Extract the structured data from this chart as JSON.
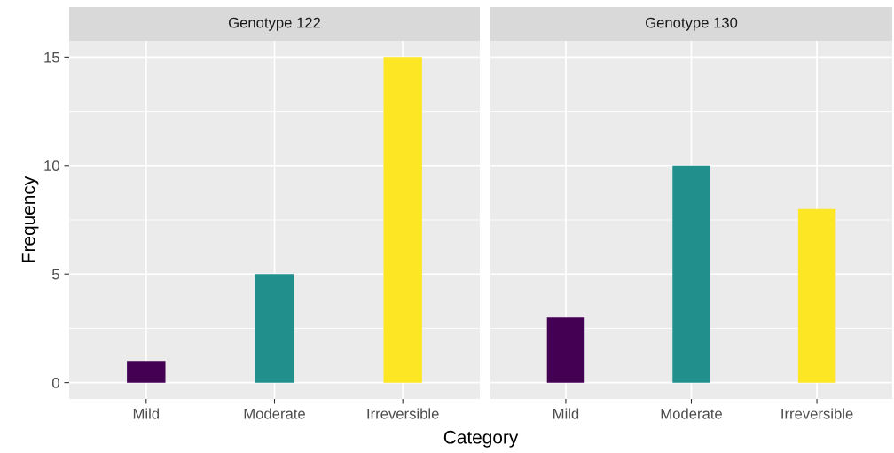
{
  "chart_data": [
    {
      "type": "bar",
      "title": "Genotype 122",
      "ylabel": "Frequency",
      "xlabel": "Category",
      "categories": [
        "Mild",
        "Moderate",
        "Irreversible"
      ],
      "values": [
        1,
        5,
        15
      ],
      "colors": [
        "#440154",
        "#21908c",
        "#fde725"
      ],
      "ylim": [
        -0.75,
        15.75
      ],
      "yticks": [
        0,
        5,
        10,
        15
      ],
      "grid": true
    },
    {
      "type": "bar",
      "title": "Genotype 130",
      "categories": [
        "Mild",
        "Moderate",
        "Irreversible"
      ],
      "values": [
        3,
        10,
        8
      ],
      "colors": [
        "#440154",
        "#21908c",
        "#fde725"
      ],
      "ylim": [
        -0.75,
        15.75
      ],
      "yticks": [
        0,
        5,
        10,
        15
      ],
      "grid": true,
      "tick_labels": "x"
    }
  ]
}
